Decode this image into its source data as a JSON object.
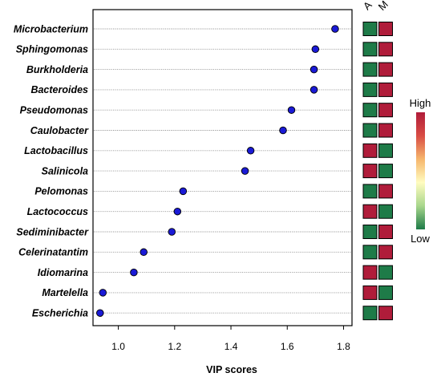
{
  "chart_data": {
    "type": "scatter",
    "orientation": "horizontal",
    "xlabel": "VIP scores",
    "xticks": [
      1.0,
      1.2,
      1.4,
      1.6,
      1.8
    ],
    "xtick_labels": [
      "1.0",
      "1.2",
      "1.4",
      "1.6",
      "1.8"
    ],
    "xlim": [
      0.91,
      1.83
    ],
    "grid": "horizontal dotted lines at each taxon",
    "categories": [
      "Microbacterium",
      "Sphingomonas",
      "Burkholderia",
      "Bacteroides",
      "Pseudomonas",
      "Caulobacter",
      "Lactobacillus",
      "Salinicola",
      "Pelomonas",
      "Lactococcus",
      "Sediminibacter",
      "Celerinatantim",
      "Idiomarina",
      "Martelella",
      "Escherichia"
    ],
    "values": [
      1.77,
      1.7,
      1.695,
      1.695,
      1.615,
      1.585,
      1.47,
      1.45,
      1.23,
      1.21,
      1.19,
      1.09,
      1.055,
      0.945,
      0.935
    ],
    "marker_color": "#1a1ad6",
    "heatmap": {
      "columns": [
        "A",
        "M"
      ],
      "cells": [
        [
          "low",
          "high"
        ],
        [
          "low",
          "high"
        ],
        [
          "low",
          "high"
        ],
        [
          "low",
          "high"
        ],
        [
          "low",
          "high"
        ],
        [
          "low",
          "high"
        ],
        [
          "high",
          "low"
        ],
        [
          "high",
          "low"
        ],
        [
          "low",
          "high"
        ],
        [
          "high",
          "low"
        ],
        [
          "low",
          "high"
        ],
        [
          "low",
          "high"
        ],
        [
          "high",
          "low"
        ],
        [
          "high",
          "low"
        ],
        [
          "low",
          "high"
        ]
      ],
      "colors": {
        "high": "#b01c3a",
        "low": "#1e7b48"
      }
    },
    "legend": {
      "high_label": "High",
      "low_label": "Low",
      "gradient": [
        "#b01c3a",
        "#d94c44",
        "#f6b66c",
        "#fffcc0",
        "#a8d68c",
        "#1e7b48"
      ],
      "placement": "right"
    }
  }
}
